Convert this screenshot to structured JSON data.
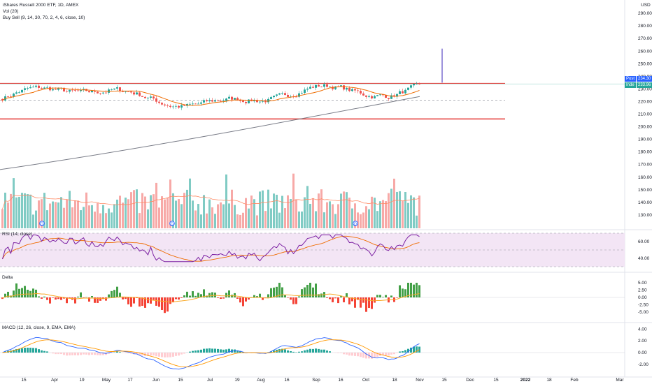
{
  "header": {
    "symbol_line": "iShares Russell 2000 ETF, 1D, AMEX",
    "vol_line": "Vol (20)",
    "buysell_line": "Buy Sell (9, 14, 30, 70, 2, 4, 6, close, 10)"
  },
  "price_axis": {
    "currency": "USD",
    "ticks": [
      "290.00",
      "280.00",
      "270.00",
      "260.00",
      "250.00",
      "240.00",
      "230.00",
      "220.00",
      "210.00",
      "200.00",
      "190.00",
      "180.00",
      "170.00",
      "160.00",
      "150.00",
      "140.00",
      "130.00"
    ],
    "tick_values": [
      290,
      280,
      270,
      260,
      250,
      240,
      230,
      220,
      210,
      200,
      190,
      180,
      170,
      160,
      150,
      140,
      130
    ],
    "post_label": "Post",
    "post_value": "234.30",
    "index_label": "Inde",
    "index_value": "233.96"
  },
  "resistance_line_value": 234.3,
  "support_line_value": 206.2,
  "dashed_line_value": 221,
  "panes": {
    "rsi": {
      "label": "RSI (14, close)",
      "ticks": [
        "60.00",
        "40.00"
      ],
      "tick_values": [
        60,
        40
      ]
    },
    "delta": {
      "label": "Delta",
      "ticks": [
        "5.00",
        "2.50",
        "0.00",
        "-2.50",
        "-5.00"
      ],
      "tick_values": [
        5,
        2.5,
        0,
        -2.5,
        -5
      ]
    },
    "macd": {
      "label": "MACD (12, 26, close, 9, EMA, EMA)",
      "ticks": [
        "4.00",
        "2.00",
        "0.00",
        "-2.00"
      ],
      "tick_values": [
        4,
        2,
        0,
        -2
      ]
    }
  },
  "time_axis": {
    "labels": [
      "15",
      "Apr",
      "19",
      "May",
      "17",
      "Jun",
      "15",
      "Jul",
      "19",
      "Aug",
      "16",
      "Sep",
      "16",
      "Oct",
      "18",
      "Nov",
      "15",
      "Dec",
      "15",
      "2022",
      "18",
      "Feb",
      "Mar"
    ]
  },
  "colors": {
    "up": "#26a69a",
    "down": "#ef5350",
    "level_line": "#e53935",
    "trend_line": "#787b86",
    "ma_line": "#ef6c00",
    "rsi_line": "#7b1fa2",
    "rsi_band": "#f3e5f5",
    "macd_line": "#2962ff",
    "signal_line": "#ff9800",
    "delta_up": "#43a047",
    "delta_down": "#f44336",
    "spike": "#5b4bc4",
    "dividend_marker": "#2962ff"
  }
}
